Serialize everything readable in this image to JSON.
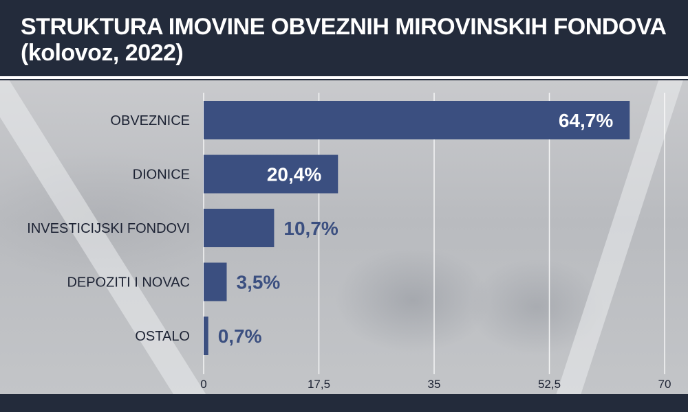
{
  "header": {
    "title_line1": "STRUKTURA IMOVINE OBVEZNIH MIROVINSKIH FONDOVA",
    "title_line2": "(kolovoz, 2022)"
  },
  "colors": {
    "bar": "#3b4f80",
    "header_bg": "#232b3b",
    "label_text": "#1c2233",
    "value_inside": "#ffffff",
    "value_outside": "#3b4f80"
  },
  "chart_data": {
    "type": "bar",
    "orientation": "horizontal",
    "categories": [
      "OBVEZNICE",
      "DIONICE",
      "INVESTICIJSKI FONDOVI",
      "DEPOZITI I NOVAC",
      "OSTALO"
    ],
    "values": [
      64.7,
      20.4,
      10.7,
      3.5,
      0.7
    ],
    "value_labels": [
      "64,7%",
      "20,4%",
      "10,7%",
      "3,5%",
      "0,7%"
    ],
    "title": "STRUKTURA IMOVINE OBVEZNIH MIROVINSKIH FONDOVA (kolovoz, 2022)",
    "xlim": [
      0,
      70
    ],
    "x_ticks": [
      0,
      17.5,
      35,
      52.5,
      70
    ],
    "x_tick_labels": [
      "0",
      "17,5",
      "35",
      "52,5",
      "70"
    ],
    "grid": "vertical"
  }
}
